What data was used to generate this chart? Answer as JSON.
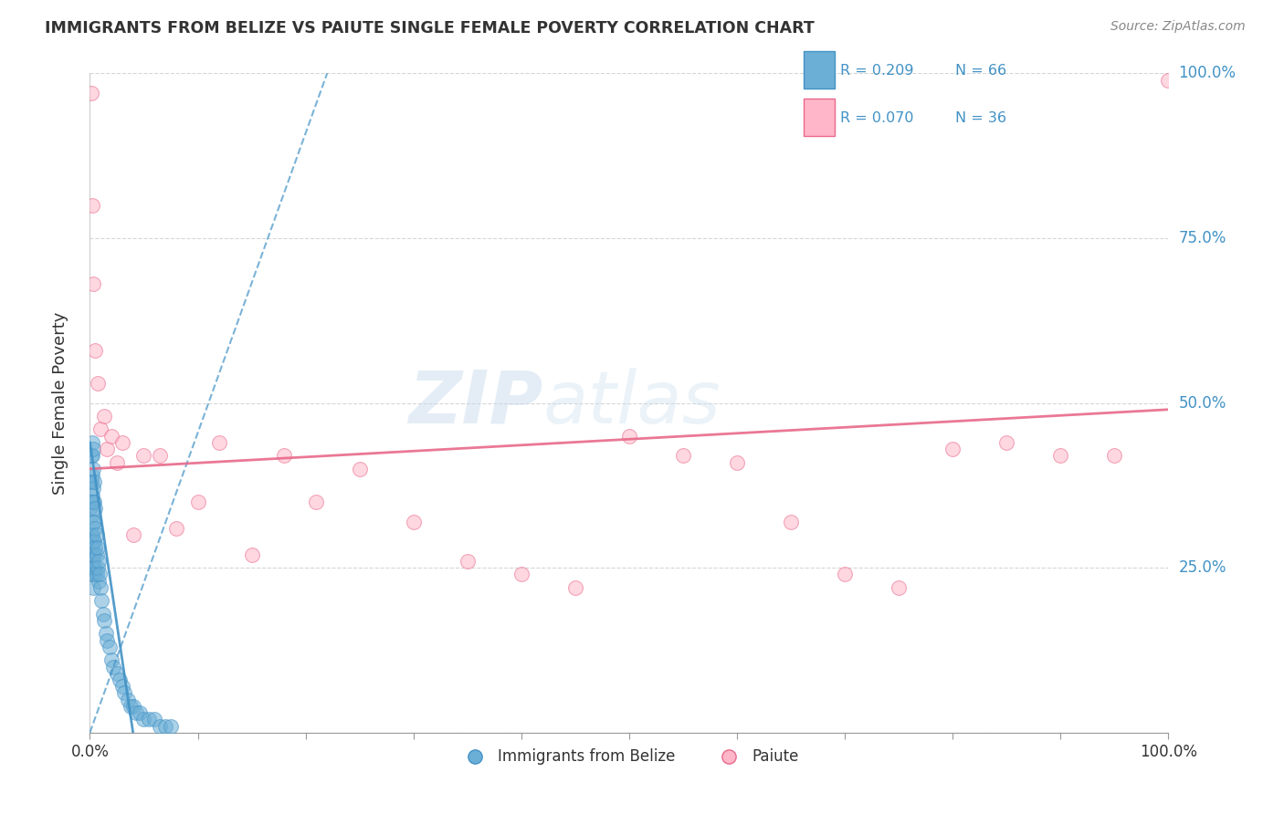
{
  "title": "IMMIGRANTS FROM BELIZE VS PAIUTE SINGLE FEMALE POVERTY CORRELATION CHART",
  "source": "Source: ZipAtlas.com",
  "ylabel": "Single Female Poverty",
  "xlim": [
    0,
    1.0
  ],
  "ylim": [
    0,
    1.0
  ],
  "color_blue": "#6baed6",
  "color_pink": "#ffb6c8",
  "line_blue": "#4292c6",
  "line_pink": "#e8698a",
  "belize_x": [
    0.0,
    0.0,
    0.001,
    0.001,
    0.001,
    0.001,
    0.002,
    0.002,
    0.002,
    0.002,
    0.002,
    0.002,
    0.002,
    0.002,
    0.002,
    0.003,
    0.003,
    0.003,
    0.003,
    0.003,
    0.003,
    0.003,
    0.003,
    0.003,
    0.004,
    0.004,
    0.004,
    0.004,
    0.004,
    0.004,
    0.005,
    0.005,
    0.005,
    0.005,
    0.006,
    0.006,
    0.006,
    0.007,
    0.007,
    0.008,
    0.008,
    0.009,
    0.01,
    0.011,
    0.012,
    0.013,
    0.015,
    0.016,
    0.018,
    0.02,
    0.022,
    0.025,
    0.028,
    0.03,
    0.032,
    0.035,
    0.038,
    0.04,
    0.043,
    0.046,
    0.05,
    0.055,
    0.06,
    0.065,
    0.07,
    0.075
  ],
  "belize_y": [
    0.38,
    0.34,
    0.42,
    0.38,
    0.35,
    0.3,
    0.44,
    0.42,
    0.39,
    0.36,
    0.33,
    0.3,
    0.28,
    0.26,
    0.24,
    0.43,
    0.4,
    0.37,
    0.35,
    0.32,
    0.29,
    0.27,
    0.25,
    0.22,
    0.38,
    0.35,
    0.32,
    0.29,
    0.27,
    0.24,
    0.34,
    0.31,
    0.28,
    0.25,
    0.3,
    0.27,
    0.24,
    0.28,
    0.25,
    0.26,
    0.23,
    0.24,
    0.22,
    0.2,
    0.18,
    0.17,
    0.15,
    0.14,
    0.13,
    0.11,
    0.1,
    0.09,
    0.08,
    0.07,
    0.06,
    0.05,
    0.04,
    0.04,
    0.03,
    0.03,
    0.02,
    0.02,
    0.02,
    0.01,
    0.01,
    0.01
  ],
  "paiute_x": [
    0.001,
    0.002,
    0.003,
    0.005,
    0.007,
    0.01,
    0.013,
    0.016,
    0.02,
    0.025,
    0.03,
    0.04,
    0.05,
    0.065,
    0.08,
    0.1,
    0.12,
    0.15,
    0.18,
    0.21,
    0.25,
    0.3,
    0.35,
    0.4,
    0.45,
    0.5,
    0.55,
    0.6,
    0.65,
    0.7,
    0.75,
    0.8,
    0.85,
    0.9,
    0.95,
    1.0
  ],
  "paiute_y": [
    0.97,
    0.8,
    0.68,
    0.58,
    0.53,
    0.46,
    0.48,
    0.43,
    0.45,
    0.41,
    0.44,
    0.3,
    0.42,
    0.42,
    0.31,
    0.35,
    0.44,
    0.27,
    0.42,
    0.35,
    0.4,
    0.32,
    0.26,
    0.24,
    0.22,
    0.45,
    0.42,
    0.41,
    0.32,
    0.24,
    0.22,
    0.43,
    0.44,
    0.42,
    0.42,
    0.99
  ],
  "blue_line_x0": 0.0,
  "blue_line_y0": 0.0,
  "blue_line_x1": 0.22,
  "blue_line_y1": 1.0,
  "pink_line_x0": 0.0,
  "pink_line_y0": 0.4,
  "pink_line_x1": 1.0,
  "pink_line_y1": 0.49
}
